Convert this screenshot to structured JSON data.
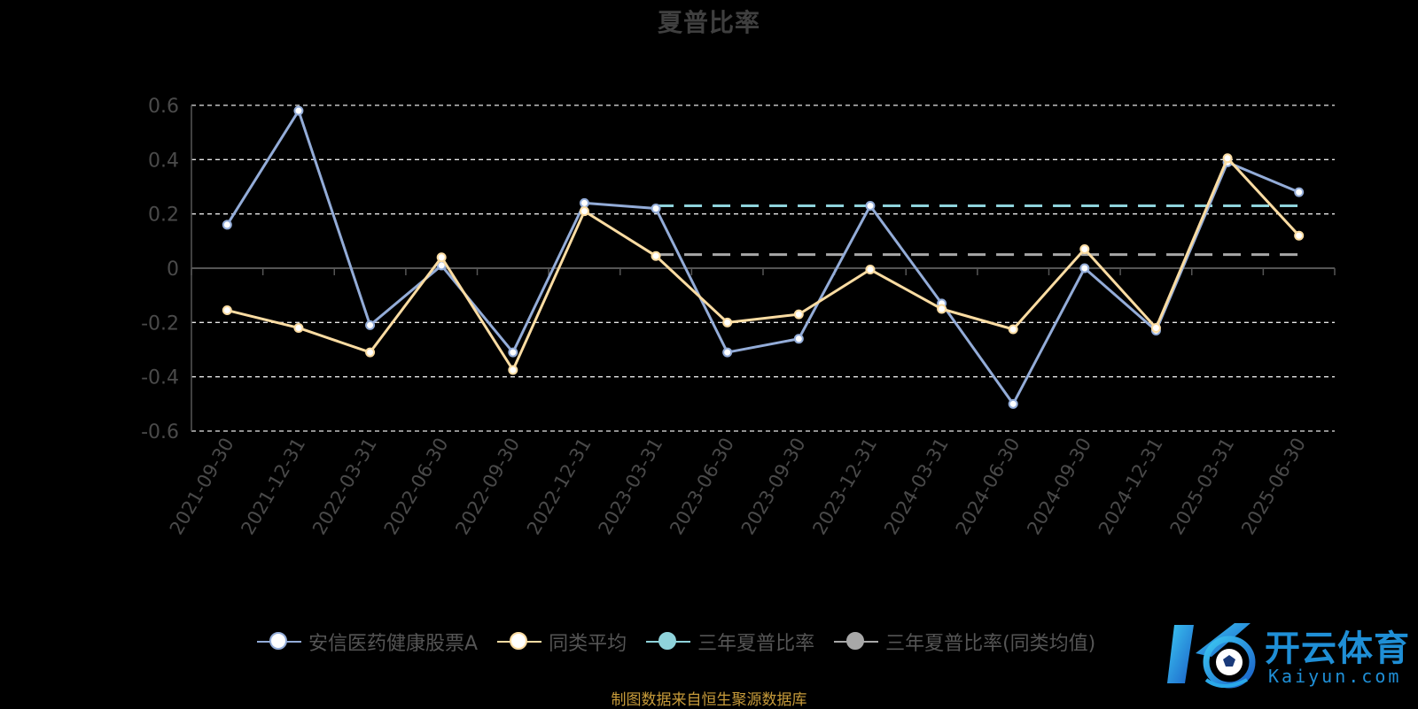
{
  "chart_data": {
    "type": "line",
    "title": "夏普比率",
    "source": "制图数据来自恒生聚源数据库",
    "x": [
      "2021-09-30",
      "2021-12-31",
      "2022-03-31",
      "2022-06-30",
      "2022-09-30",
      "2022-12-31",
      "2023-03-31",
      "2023-06-30",
      "2023-09-30",
      "2023-12-31",
      "2024-03-31",
      "2024-06-30",
      "2024-09-30",
      "2024-12-31",
      "2025-03-31",
      "2025-06-30"
    ],
    "ylim": [
      -0.6,
      0.6
    ],
    "yticks": [
      "0.6",
      "0.4",
      "0.2",
      "0",
      "-0.2",
      "-0.4",
      "-0.6"
    ],
    "ytick_values": [
      0.6,
      0.4,
      0.2,
      0,
      -0.2,
      -0.4,
      -0.6
    ],
    "grid": true,
    "legend_position": "bottom",
    "series": [
      {
        "name": "安信医药健康股票A",
        "color": "#93acd8",
        "marker_fill": "#ffffff",
        "values": [
          0.16,
          0.58,
          -0.21,
          0.01,
          -0.31,
          0.24,
          0.22,
          -0.31,
          -0.26,
          0.23,
          -0.13,
          -0.5,
          0.0,
          -0.23,
          0.39,
          0.28
        ]
      },
      {
        "name": "同类平均",
        "color": "#fbdca2",
        "marker_fill": "#ffffff",
        "values": [
          -0.155,
          -0.22,
          -0.31,
          0.04,
          -0.375,
          0.21,
          0.045,
          -0.2,
          -0.17,
          -0.005,
          -0.15,
          -0.225,
          0.07,
          -0.22,
          0.405,
          0.12
        ]
      },
      {
        "name": "三年夏普比率",
        "color": "#8fd3db",
        "style": "dashed",
        "start": "2023-03-31",
        "end": "2025-06-30",
        "value": 0.23
      },
      {
        "name": "三年夏普比率(同类均值)",
        "color": "#a8a8a8",
        "style": "dashed",
        "start": "2023-03-31",
        "end": "2025-06-30",
        "value": 0.05
      }
    ]
  },
  "legend": {
    "items": [
      {
        "label": "安信医药健康股票A",
        "line": "#93acd8",
        "dot": "#ffffff",
        "ring": "#93acd8"
      },
      {
        "label": "同类平均",
        "line": "#fbdca2",
        "dot": "#ffffff",
        "ring": "#fbdca2"
      },
      {
        "label": "三年夏普比率",
        "line": "#8fd3db",
        "dot": "#8fd3db",
        "ring": "#8fd3db"
      },
      {
        "label": "三年夏普比率(同类均值)",
        "line": "#a8a8a8",
        "dot": "#a8a8a8",
        "ring": "#a8a8a8"
      }
    ]
  },
  "logo": {
    "text": "开云体育",
    "sub": "Kaiyun.com",
    "icon": "kaiyun-soccer-logo-icon"
  }
}
